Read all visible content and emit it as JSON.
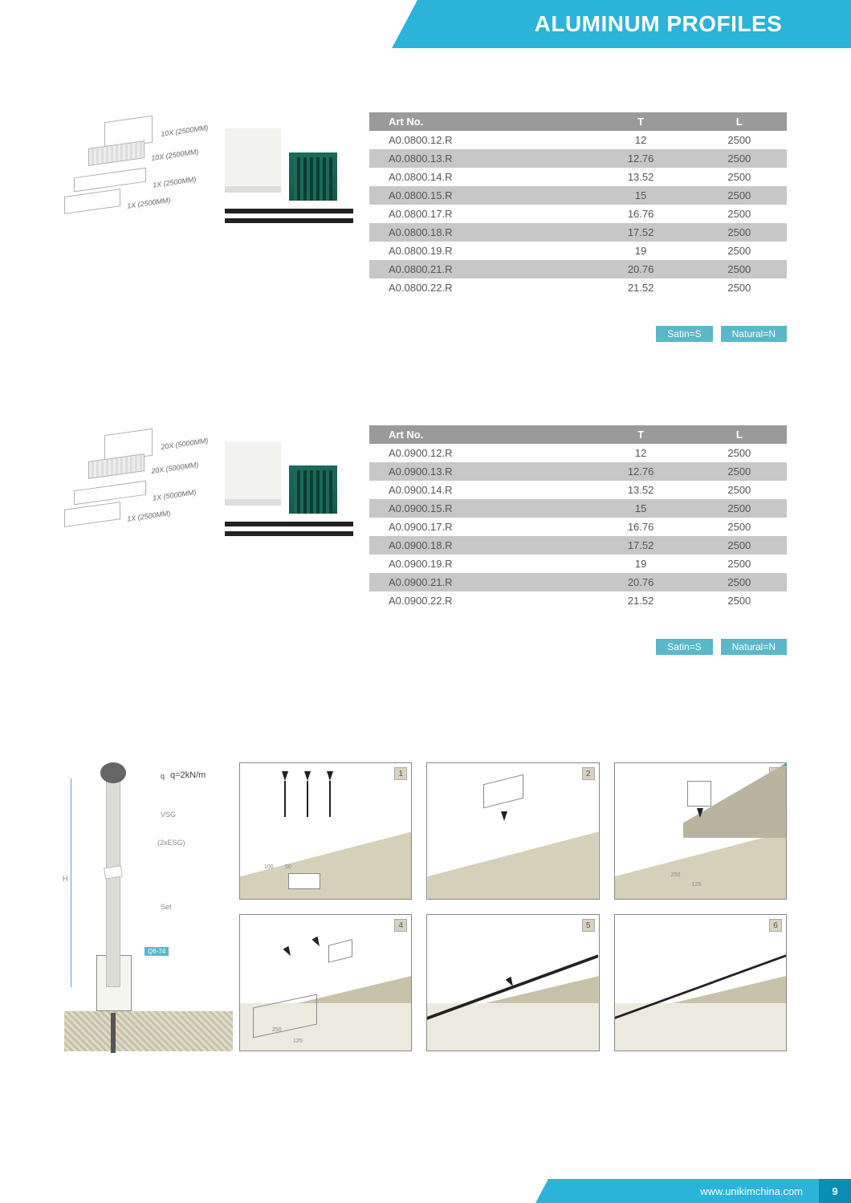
{
  "header": {
    "title": "ALUMINUM PROFILES"
  },
  "section1": {
    "iso_labels": [
      "10X (2500MM)",
      "10X (2500MM)",
      "1X (2500MM)",
      "1X (2500MM)"
    ],
    "columns": [
      "Art No.",
      "T",
      "L"
    ],
    "rows": [
      [
        "A0.0800.12.R",
        "12",
        "2500"
      ],
      [
        "A0.0800.13.R",
        "12.76",
        "2500"
      ],
      [
        "A0.0800.14.R",
        "13.52",
        "2500"
      ],
      [
        "A0.0800.15.R",
        "15",
        "2500"
      ],
      [
        "A0.0800.17.R",
        "16.76",
        "2500"
      ],
      [
        "A0.0800.18.R",
        "17.52",
        "2500"
      ],
      [
        "A0.0800.19.R",
        "19",
        "2500"
      ],
      [
        "A0.0800.21.R",
        "20.76",
        "2500"
      ],
      [
        "A0.0800.22.R",
        "21.52",
        "2500"
      ]
    ],
    "legend": [
      "Satin=S",
      "Natural=N"
    ]
  },
  "section2": {
    "iso_labels": [
      "20X (5000MM)",
      "20X (5000MM)",
      "1X (5000MM)",
      "1X (2500MM)"
    ],
    "columns": [
      "Art No.",
      "T",
      "L"
    ],
    "rows": [
      [
        "A0.0900.12.R",
        "12",
        "2500"
      ],
      [
        "A0.0900.13.R",
        "12.76",
        "2500"
      ],
      [
        "A0.0900.14.R",
        "13.52",
        "2500"
      ],
      [
        "A0.0900.15.R",
        "15",
        "2500"
      ],
      [
        "A0.0900.17.R",
        "16.76",
        "2500"
      ],
      [
        "A0.0900.18.R",
        "17.52",
        "2500"
      ],
      [
        "A0.0900.19.R",
        "19",
        "2500"
      ],
      [
        "A0.0900.21.R",
        "20.76",
        "2500"
      ],
      [
        "A0.0900.22.R",
        "21.52",
        "2500"
      ]
    ],
    "legend": [
      "Satin=S",
      "Natural=N"
    ]
  },
  "cross_section": {
    "q_label_small": "q",
    "q_formula": "q=2kN/m",
    "vsg": "VSG",
    "esg": "(2xESG)",
    "set": "Set",
    "h": "H",
    "badge": "Q6-74"
  },
  "panels": {
    "numbers": [
      "1",
      "2",
      "3",
      "4",
      "5",
      "6"
    ],
    "p1_dims": [
      "100",
      "50"
    ],
    "p3_dims": [
      "250",
      "125"
    ],
    "p4_dims": [
      "250",
      "125"
    ]
  },
  "footer": {
    "url": "www.unikimchina.com",
    "page": "9"
  },
  "colors": {
    "brand": "#2bb3d9",
    "brand_dark": "#0a8db5",
    "table_header": "#9a9a9a",
    "table_alt": "#c7c7c7",
    "legend": "#5bb7c9",
    "profile_green": "#1a6b58",
    "panel_tan": "#d6d0bb"
  }
}
